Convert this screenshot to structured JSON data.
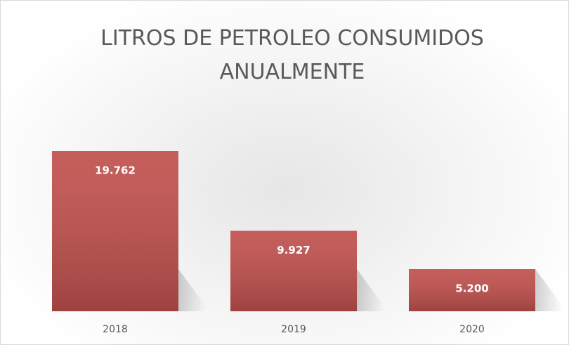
{
  "chart_data": {
    "type": "bar",
    "title": "LITROS DE PETROLEO CONSUMIDOS ANUALMENTE",
    "categories": [
      "2018",
      "2019",
      "2020"
    ],
    "values": [
      19762,
      9927,
      5200
    ],
    "value_labels": [
      "19.762",
      "9.927",
      "5.200"
    ],
    "color": "#c0504d"
  }
}
